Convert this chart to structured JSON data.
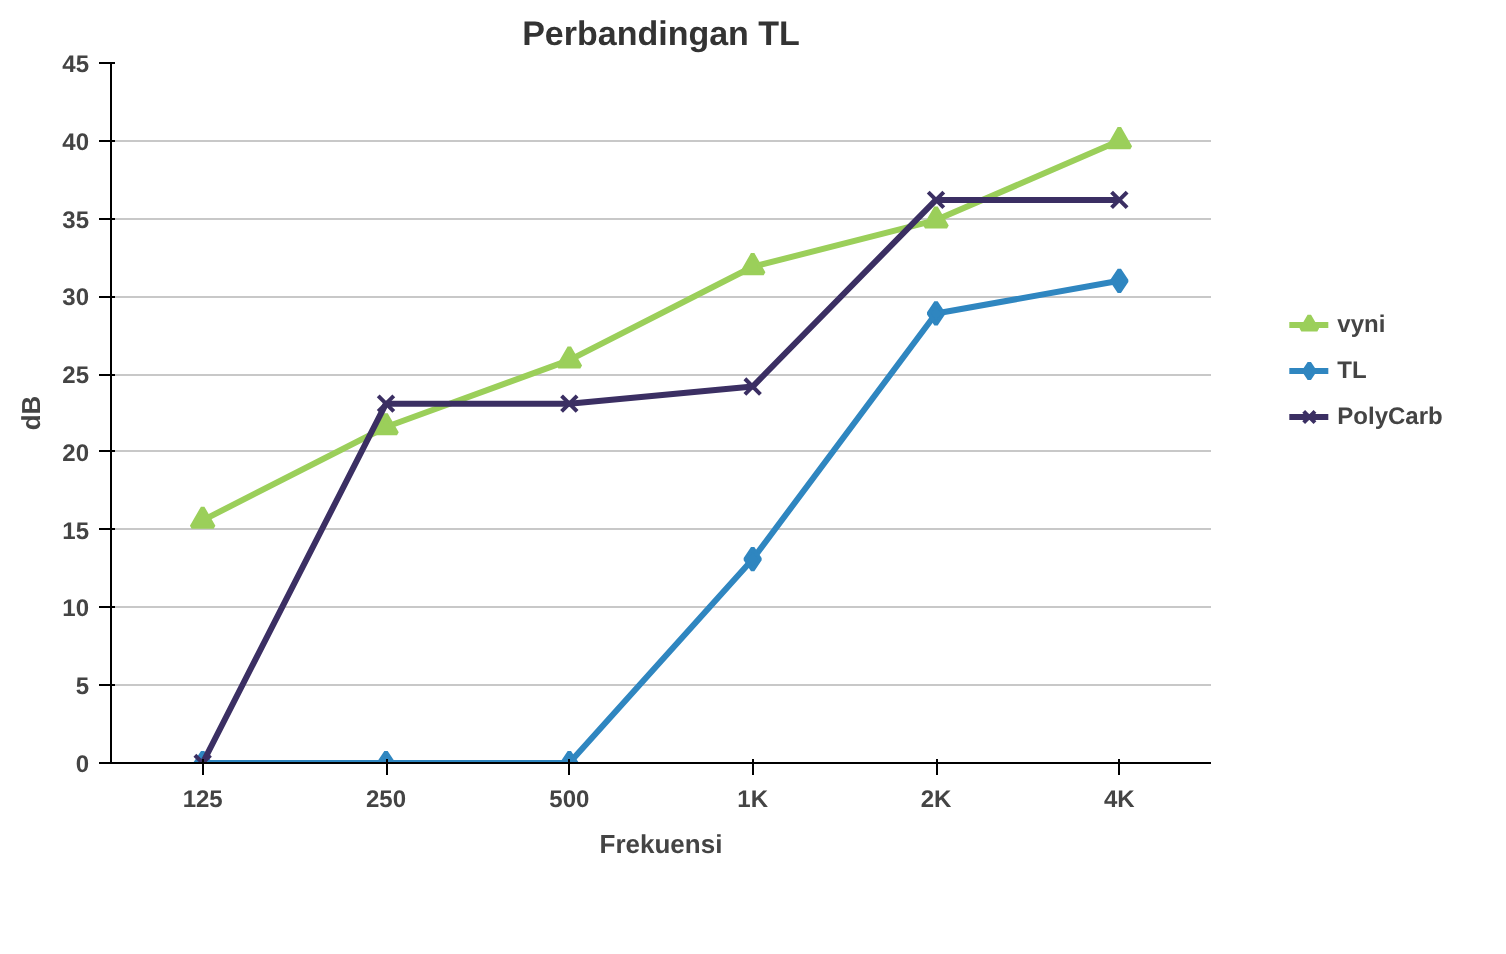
{
  "chart_data": {
    "type": "line",
    "title": "Perbandingan TL",
    "xlabel": "Frekuensi",
    "ylabel": "dB",
    "categories": [
      "125",
      "250",
      "500",
      "1K",
      "2K",
      "4K"
    ],
    "series": [
      {
        "name": "vyni",
        "color": "#9bcf5a",
        "marker": "triangle",
        "values": [
          15.6,
          21.6,
          25.9,
          31.9,
          34.9,
          40
        ]
      },
      {
        "name": "TL",
        "color": "#2f86c0",
        "marker": "diamond",
        "values": [
          0,
          0,
          0,
          13.1,
          28.9,
          31
        ]
      },
      {
        "name": "PolyCarb",
        "color": "#3b2f63",
        "marker": "cross",
        "values": [
          0,
          23.1,
          23.1,
          24.2,
          36.2,
          36.2
        ]
      }
    ],
    "ylim": [
      0,
      45
    ],
    "yticks": [
      0,
      5,
      10,
      15,
      20,
      25,
      30,
      35,
      40,
      45
    ],
    "grid": "y",
    "legend": "right"
  }
}
